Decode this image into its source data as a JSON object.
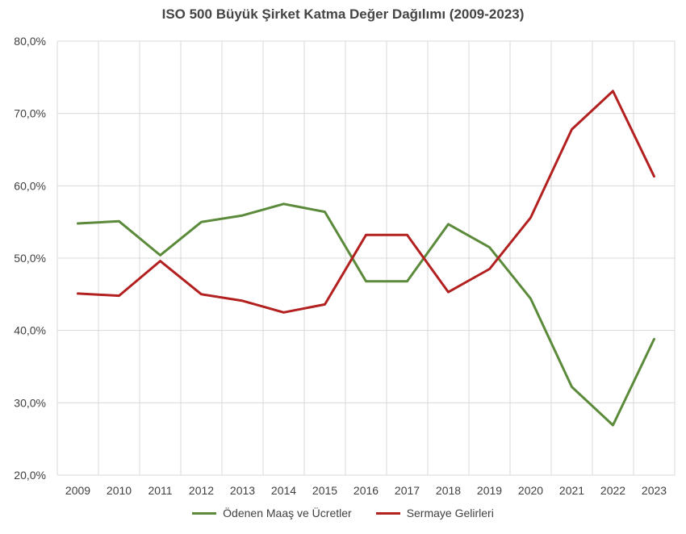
{
  "chart_data": {
    "type": "line",
    "title": "ISO 500 Büyük Şirket Katma Değer Dağılımı (2009-2023)",
    "categories": [
      "2009",
      "2010",
      "2011",
      "2012",
      "2013",
      "2014",
      "2015",
      "2016",
      "2017",
      "2018",
      "2019",
      "2020",
      "2021",
      "2022",
      "2023"
    ],
    "ylim": [
      20,
      80
    ],
    "yticks": [
      20,
      30,
      40,
      50,
      60,
      70,
      80
    ],
    "ytick_labels": [
      "20,0%",
      "30,0%",
      "40,0%",
      "50,0%",
      "60,0%",
      "70,0%",
      "80,0%"
    ],
    "grid": true,
    "legend_position": "bottom",
    "series": [
      {
        "name": "Ödenen Maaş ve Ücretler",
        "color": "#5b8a3a",
        "values": [
          54.8,
          55.1,
          50.4,
          55.0,
          55.9,
          57.5,
          56.4,
          46.8,
          46.8,
          54.7,
          51.5,
          44.4,
          32.2,
          26.9,
          38.8
        ]
      },
      {
        "name": "Sermaye Gelirleri",
        "color": "#b2201f",
        "values": [
          45.1,
          44.8,
          49.6,
          45.0,
          44.1,
          42.5,
          43.6,
          53.2,
          53.2,
          45.3,
          48.5,
          55.6,
          67.8,
          73.1,
          61.3
        ]
      }
    ]
  }
}
